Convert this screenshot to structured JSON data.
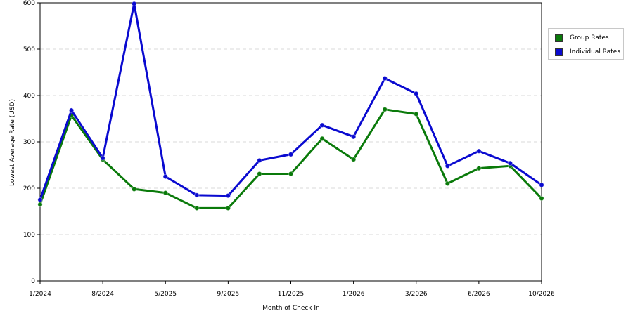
{
  "chart_data": {
    "type": "line",
    "xlabel": "Month of Check In",
    "ylabel": "Lowest Average Rate (USD)",
    "ylim": [
      0,
      600
    ],
    "yticks": [
      0,
      100,
      200,
      300,
      400,
      500,
      600
    ],
    "x_tick_labels": [
      "1/2024",
      "8/2024",
      "5/2025",
      "9/2025",
      "11/2025",
      "1/2026",
      "3/2026",
      "6/2026",
      "10/2026"
    ],
    "grid": "horizontal dashed",
    "legend_position": "top-right, outside plot",
    "series": [
      {
        "name": "Group Rates",
        "color": "#0a7a0a",
        "values": [
          165,
          357,
          262,
          198,
          190,
          157,
          157,
          231,
          231,
          307,
          262,
          370,
          360,
          210,
          243,
          248,
          178
        ]
      },
      {
        "name": "Individual Rates",
        "color": "#0a0ad0",
        "values": [
          175,
          368,
          265,
          598,
          225,
          185,
          184,
          260,
          273,
          336,
          311,
          437,
          404,
          248,
          280,
          254,
          207
        ]
      }
    ]
  }
}
